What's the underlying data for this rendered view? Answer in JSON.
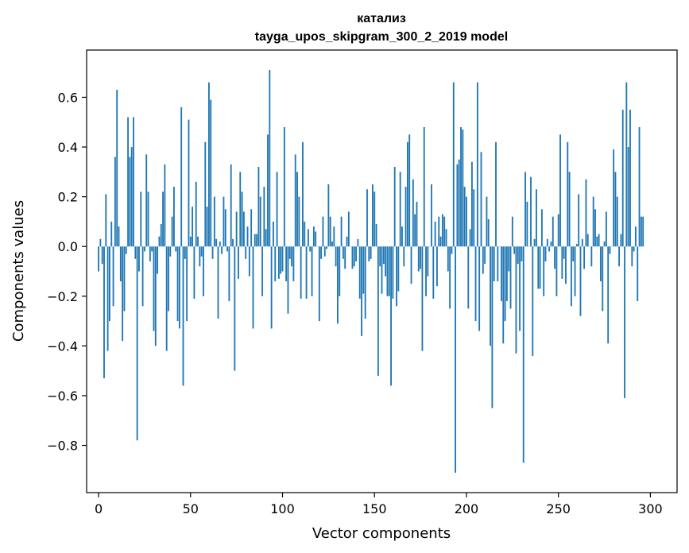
{
  "chart_data": {
    "type": "bar",
    "title": "катализ",
    "subtitle": "tayga_upos_skipgram_300_2_2019 model",
    "xlabel": "Vector components",
    "ylabel": "Components values",
    "xlim": [
      -6.5,
      314.5
    ],
    "ylim": [
      -0.99,
      0.79
    ],
    "x_ticks": [
      0,
      50,
      100,
      150,
      200,
      250,
      300
    ],
    "x_tick_labels": [
      "0",
      "50",
      "100",
      "150",
      "200",
      "250",
      "300"
    ],
    "y_ticks": [
      -0.8,
      -0.6,
      -0.4,
      -0.2,
      0.0,
      0.2,
      0.4,
      0.6
    ],
    "y_tick_labels": [
      "−0.8",
      "−0.6",
      "−0.4",
      "−0.2",
      "0.0",
      "0.2",
      "0.4",
      "0.6"
    ],
    "grid": false,
    "bar_color": "#1f77b4",
    "values": [
      -0.1,
      0.03,
      -0.07,
      -0.53,
      0.21,
      -0.42,
      -0.3,
      0.1,
      -0.24,
      0.36,
      0.63,
      0.08,
      -0.14,
      -0.38,
      -0.26,
      -0.03,
      0.52,
      0.36,
      0.4,
      0.52,
      -0.05,
      -0.78,
      -0.1,
      0.22,
      -0.24,
      -0.02,
      0.37,
      0.22,
      -0.06,
      -0.02,
      -0.34,
      -0.4,
      -0.11,
      0.04,
      0.09,
      0.22,
      0.33,
      -0.42,
      -0.26,
      -0.04,
      0.12,
      0.24,
      -0.02,
      -0.3,
      -0.33,
      0.56,
      -0.56,
      -0.05,
      -0.3,
      0.51,
      0.04,
      0.16,
      -0.21,
      0.26,
      0.04,
      -0.08,
      -0.04,
      -0.2,
      0.42,
      0.16,
      0.66,
      0.59,
      -0.05,
      0.2,
      0.03,
      -0.29,
      0.02,
      -0.03,
      0.2,
      0.15,
      -0.02,
      -0.22,
      0.33,
      0.03,
      -0.5,
      0.14,
      -0.13,
      0.3,
      0.22,
      0.14,
      -0.05,
      0.08,
      -0.12,
      0.15,
      -0.33,
      0.05,
      0.05,
      0.32,
      0.2,
      -0.2,
      0.24,
      0.07,
      0.45,
      0.71,
      -0.33,
      0.1,
      -0.14,
      0.3,
      -0.13,
      -0.11,
      -0.1,
      0.48,
      -0.14,
      -0.27,
      -0.05,
      -0.08,
      -0.14,
      0.37,
      0.3,
      0.2,
      -0.21,
      0.42,
      0.1,
      -0.21,
      0.07,
      -0.02,
      -0.2,
      0.08,
      0.06,
      0.0,
      -0.3,
      -0.05,
      0.12,
      -0.04,
      -0.01,
      0.25,
      0.12,
      0.02,
      0.08,
      -0.08,
      -0.31,
      -0.2,
      0.12,
      -0.05,
      -0.09,
      0.04,
      0.14,
      0.0,
      -0.09,
      -0.08,
      -0.06,
      0.03,
      -0.21,
      -0.36,
      -0.19,
      -0.29,
      0.23,
      -0.06,
      -0.05,
      0.25,
      0.22,
      0.09,
      -0.52,
      -0.08,
      -0.19,
      -0.07,
      -0.12,
      -0.2,
      -0.2,
      -0.56,
      -0.21,
      0.32,
      -0.24,
      -0.18,
      0.3,
      0.08,
      -0.08,
      0.24,
      0.42,
      0.45,
      -0.15,
      0.27,
      0.13,
      0.18,
      -0.1,
      -0.09,
      -0.42,
      0.48,
      -0.2,
      -0.12,
      0.0,
      0.25,
      -0.21,
      0.1,
      -0.16,
      0.12,
      0.04,
      0.13,
      0.12,
      0.07,
      -0.1,
      -0.25,
      -0.03,
      0.66,
      -0.91,
      0.33,
      0.35,
      0.48,
      0.47,
      0.24,
      0.2,
      -0.25,
      0.07,
      0.34,
      0.23,
      -0.3,
      0.66,
      -0.34,
      0.38,
      -0.11,
      -0.07,
      0.2,
      0.11,
      -0.4,
      -0.65,
      -0.14,
      0.42,
      -0.14,
      0.0,
      -0.22,
      -0.39,
      -0.3,
      -0.22,
      -0.1,
      -0.25,
      0.12,
      -0.03,
      -0.43,
      -0.07,
      -0.34,
      -0.06,
      -0.87,
      0.3,
      0.18,
      0.0,
      0.28,
      -0.44,
      0.03,
      0.23,
      -0.17,
      -0.17,
      0.15,
      -0.2,
      -0.06,
      0.03,
      -0.02,
      0.02,
      0.12,
      -0.09,
      -0.2,
      0.13,
      0.45,
      -0.13,
      -0.05,
      -0.15,
      0.42,
      0.3,
      -0.24,
      -0.06,
      -0.2,
      0.01,
      0.21,
      -0.28,
      0.03,
      -0.09,
      0.27,
      0.05,
      0.0,
      -0.08,
      0.2,
      0.15,
      0.04,
      0.05,
      -0.14,
      -0.26,
      0.02,
      0.14,
      -0.39,
      -0.03,
      0.0,
      0.39,
      0.3,
      0.2,
      -0.08,
      0.05,
      0.55,
      -0.61,
      0.66,
      0.4,
      0.55,
      -0.08,
      -0.02,
      0.08,
      -0.22,
      0.48,
      0.12,
      0.12
    ]
  }
}
